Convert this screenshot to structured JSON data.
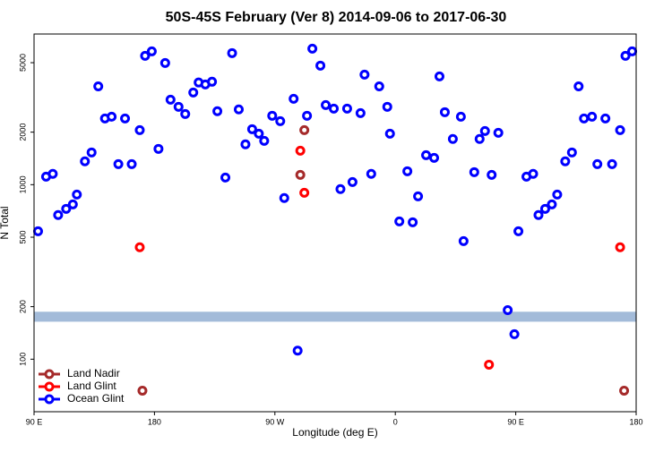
{
  "chart_data": {
    "type": "scatter",
    "title": "50S-45S February (Ver 8)   2014-09-06 to 2017-06-30",
    "x_label": "Longitude (deg E)",
    "y_label": "N Total",
    "xlim": [
      90,
      540
    ],
    "ylim": [
      50,
      7300
    ],
    "y_log": true,
    "xticks": [
      {
        "value": 90,
        "label": "90 E"
      },
      {
        "value": 180,
        "label": "180"
      },
      {
        "value": 270,
        "label": "90 W"
      },
      {
        "value": 360,
        "label": "0"
      },
      {
        "value": 450,
        "label": "90 E"
      },
      {
        "value": 540,
        "label": "180"
      }
    ],
    "yticks": [
      100,
      200,
      500,
      1000,
      2000,
      5000
    ],
    "band": [
      164,
      187
    ],
    "band_color": "#a3bbd9",
    "legend": "bottom-left",
    "series": [
      {
        "name": "Land Nadir",
        "color": "#a52a2a",
        "x": [
          171,
          289,
          292,
          531
        ],
        "values": [
          66,
          1138,
          2055,
          66
        ]
      },
      {
        "name": "Land Glint",
        "color": "#ff0000",
        "x": [
          169,
          289,
          292,
          430,
          528
        ],
        "values": [
          438,
          1566,
          899,
          93,
          438
        ]
      },
      {
        "name": "Ocean Glint",
        "color": "#0000ff",
        "x": [
          93,
          99,
          104,
          108,
          114,
          119,
          122,
          128,
          133,
          138,
          143,
          148,
          153,
          158,
          163,
          169,
          173,
          178,
          183,
          188,
          192,
          198,
          203,
          209,
          213,
          218,
          223,
          227,
          233,
          238,
          243,
          248,
          253,
          258,
          262,
          268,
          274,
          277,
          284,
          287,
          294,
          298,
          304,
          308,
          314,
          319,
          324,
          328,
          334,
          337,
          342,
          348,
          354,
          356,
          363,
          369,
          373,
          377,
          383,
          389,
          393,
          397,
          403,
          409,
          411,
          419,
          423,
          427,
          432,
          437,
          444,
          449,
          452,
          458,
          463,
          467,
          472,
          477,
          481,
          487,
          492,
          497,
          501,
          507,
          511,
          517,
          522,
          528,
          532,
          537
        ],
        "values": [
          541,
          1111,
          1153,
          670,
          727,
          771,
          878,
          1360,
          1530,
          3660,
          2395,
          2453,
          1312,
          2395,
          1312,
          2055,
          5475,
          5810,
          1604,
          4980,
          3070,
          2794,
          2541,
          3375,
          3850,
          3750,
          3890,
          2635,
          1099,
          5675,
          2700,
          1702,
          2080,
          1960,
          1783,
          2483,
          2312,
          838,
          3106,
          112,
          2483,
          6015,
          4810,
          2859,
          2729,
          943,
          2729,
          1036,
          2570,
          4273,
          1153,
          3660,
          2794,
          1960,
          616,
          1194,
          609,
          857,
          1476,
          1425,
          4174,
          2603,
          1827,
          2453,
          475,
          1180,
          1827,
          2031,
          1138,
          1983,
          191,
          139,
          541,
          1111,
          1153,
          670,
          727,
          771,
          878,
          1360,
          1530,
          3660,
          2395,
          2453,
          1312,
          2395,
          1312,
          2055,
          5475,
          5810
        ]
      }
    ]
  }
}
